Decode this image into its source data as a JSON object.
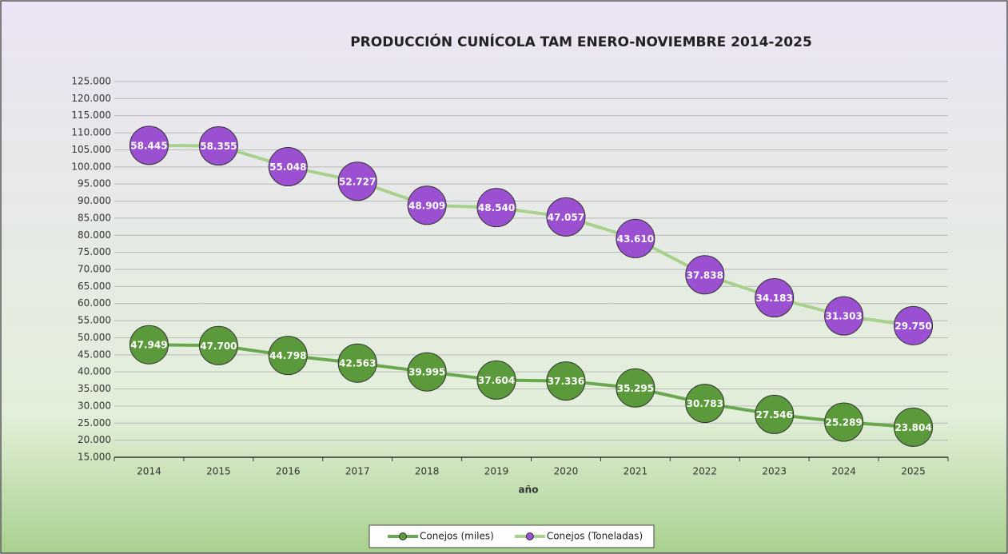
{
  "chart_data": {
    "type": "line",
    "title": "PRODUCCIÓN CUNÍCOLA TAM ENERO-NOVIEMBRE 2014-2025",
    "x_label": "año",
    "categories": [
      "2014",
      "2015",
      "2016",
      "2017",
      "2018",
      "2019",
      "2020",
      "2021",
      "2022",
      "2023",
      "2024",
      "2025"
    ],
    "series": [
      {
        "name": "Conejos (miles)",
        "color": "#5b9a3a",
        "line_color": "#6aa84f",
        "values": [
          47949,
          47700,
          44798,
          42563,
          39995,
          37604,
          37336,
          35295,
          30783,
          27546,
          25289,
          23804
        ],
        "value_labels": [
          "47.949",
          "47.700",
          "44.798",
          "42.563",
          "39.995",
          "37.604",
          "37.336",
          "35.295",
          "30.783",
          "27.546",
          "25.289",
          "23.804"
        ]
      },
      {
        "name": "Conejos (Toneladas)",
        "color": "#9b4fd1",
        "line_color": "#a9d18e",
        "axis": "y2",
        "values": [
          58445,
          58355,
          55048,
          52727,
          48909,
          48540,
          47057,
          43610,
          37838,
          34183,
          31303,
          29750
        ],
        "value_labels": [
          "58.445",
          "58.355",
          "55.048",
          "52.727",
          "48.909",
          "48.540",
          "47.057",
          "43.610",
          "37.838",
          "34.183",
          "31.303",
          "29.750"
        ]
      }
    ],
    "ylim": [
      15000,
      125000
    ],
    "yticks": [
      {
        "value": 15000,
        "label": "15.000"
      },
      {
        "value": 20000,
        "label": "20.000"
      },
      {
        "value": 25000,
        "label": "25.000"
      },
      {
        "value": 30000,
        "label": "30.000"
      },
      {
        "value": 35000,
        "label": "35.000"
      },
      {
        "value": 40000,
        "label": "40.000"
      },
      {
        "value": 45000,
        "label": "45.000"
      },
      {
        "value": 50000,
        "label": "50.000"
      },
      {
        "value": 55000,
        "label": "55.000"
      },
      {
        "value": 60000,
        "label": "60.000"
      },
      {
        "value": 65000,
        "label": "65.000"
      },
      {
        "value": 70000,
        "label": "70.000"
      },
      {
        "value": 75000,
        "label": "75.000"
      },
      {
        "value": 80000,
        "label": "80.000"
      },
      {
        "value": 85000,
        "label": "85.000"
      },
      {
        "value": 90000,
        "label": "90.000"
      },
      {
        "value": 95000,
        "label": "95.000"
      },
      {
        "value": 100000,
        "label": "100.000"
      },
      {
        "value": 105000,
        "label": "105.000"
      },
      {
        "value": 110000,
        "label": "110.000"
      },
      {
        "value": 115000,
        "label": "115.000"
      },
      {
        "value": 120000,
        "label": "120.000"
      },
      {
        "value": 125000,
        "label": "125.000"
      }
    ],
    "y2lim": [
      8800,
      68600
    ],
    "grid": true,
    "legend": "bottom"
  }
}
